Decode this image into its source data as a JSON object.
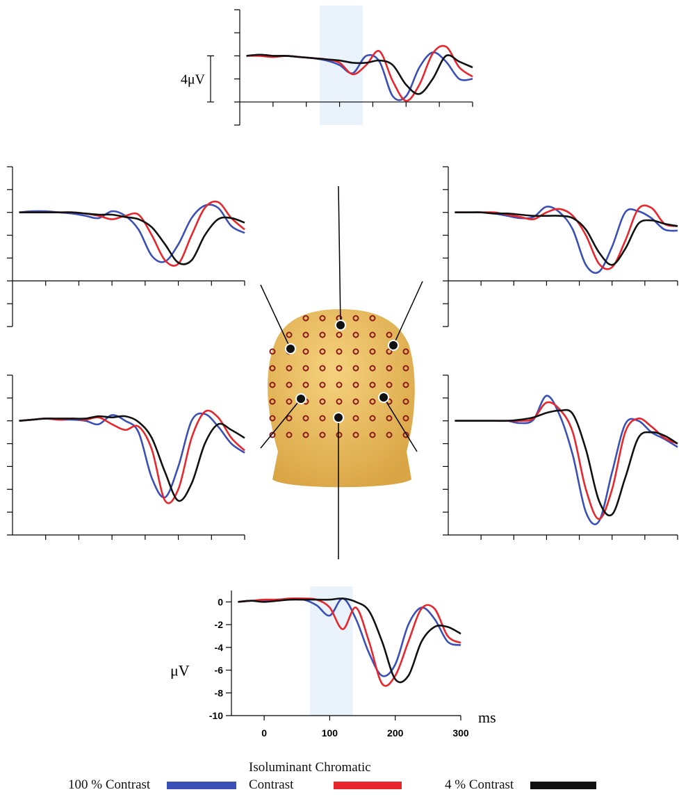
{
  "chart_data": [
    {
      "type": "line",
      "x": [
        -40,
        -20,
        0,
        20,
        40,
        60,
        80,
        100,
        120,
        140,
        160,
        180,
        200,
        220,
        240,
        260,
        280,
        300
      ],
      "xlim": [
        -50,
        300
      ],
      "ylim": [
        -6,
        4
      ],
      "xticks": [
        0,
        50,
        100,
        150,
        200,
        250,
        300
      ],
      "yticks": [
        4,
        2,
        0,
        -2,
        -4,
        -6
      ],
      "tick_labels": false,
      "x_axis_at": -4,
      "highlight": [
        70,
        135
      ],
      "highlight_color": "#eaf3fb",
      "scale_bar": {
        "value": 4,
        "label": "4μV"
      },
      "series": [
        {
          "color": "#3a4fb8",
          "values": [
            0,
            0.1,
            0,
            0,
            -0.1,
            -0.2,
            -0.4,
            -0.8,
            -1.5,
            0,
            -0.5,
            -3.5,
            -3.5,
            -1,
            0.3,
            -0.5,
            -2,
            -2
          ]
        },
        {
          "color": "#e8262b",
          "values": [
            0,
            0,
            -0.1,
            0,
            -0.1,
            -0.2,
            -0.3,
            -0.6,
            -1.6,
            -0.8,
            0.4,
            -2.2,
            -3.9,
            -2.5,
            0.2,
            0.8,
            -1,
            -1.8
          ]
        },
        {
          "color": "#111111",
          "values": [
            0,
            0.1,
            0,
            0,
            -0.1,
            -0.2,
            -0.3,
            -0.4,
            -0.6,
            -0.6,
            -0.4,
            -0.8,
            -2.5,
            -3.3,
            -2,
            0,
            -0.5,
            -1
          ]
        }
      ]
    },
    {
      "type": "line",
      "x": [
        -40,
        -20,
        0,
        20,
        40,
        60,
        80,
        100,
        120,
        140,
        160,
        180,
        200,
        220,
        240,
        260,
        280,
        300
      ],
      "xlim": [
        -50,
        300
      ],
      "ylim": [
        -10,
        4
      ],
      "xticks": [
        0,
        50,
        100,
        150,
        200,
        250,
        300
      ],
      "yticks": [
        4,
        2,
        0,
        -2,
        -4,
        -6,
        -8,
        -10
      ],
      "tick_labels": false,
      "x_axis_at": -6,
      "series": [
        {
          "color": "#3a4fb8",
          "values": [
            0,
            0.1,
            0.1,
            0,
            -0.1,
            -0.3,
            -0.5,
            0.1,
            -0.3,
            -1.5,
            -3.8,
            -4.3,
            -2.8,
            -0.5,
            0.6,
            0.4,
            -1.2,
            -1.8
          ]
        },
        {
          "color": "#e8262b",
          "values": [
            0,
            0,
            0,
            0,
            0,
            -0.1,
            -0.3,
            -0.6,
            -0.3,
            -0.2,
            -2,
            -4.2,
            -4.5,
            -2,
            0.4,
            0.9,
            -0.5,
            -1.5
          ]
        },
        {
          "color": "#111111",
          "values": [
            0,
            0,
            0,
            0,
            0,
            -0.1,
            -0.2,
            -0.2,
            -0.4,
            -0.6,
            -1.3,
            -2.8,
            -4.4,
            -4.2,
            -2,
            -0.6,
            -0.5,
            -0.9
          ]
        }
      ]
    },
    {
      "type": "line",
      "x": [
        -40,
        -20,
        0,
        20,
        40,
        60,
        80,
        100,
        120,
        140,
        160,
        180,
        200,
        220,
        240,
        260,
        280,
        300
      ],
      "xlim": [
        -50,
        300
      ],
      "ylim": [
        -10,
        4
      ],
      "xticks": [
        0,
        50,
        100,
        150,
        200,
        250,
        300
      ],
      "yticks": [
        4,
        2,
        0,
        -2,
        -4,
        -6,
        -8,
        -10
      ],
      "tick_labels": false,
      "x_axis_at": -6,
      "series": [
        {
          "color": "#3a4fb8",
          "values": [
            0,
            0,
            0,
            -0.1,
            -0.3,
            -0.5,
            -0.4,
            0.5,
            0,
            -1.5,
            -4.6,
            -5.2,
            -3,
            0,
            0.1,
            -0.5,
            -1.5,
            -1.6
          ]
        },
        {
          "color": "#e8262b",
          "values": [
            0,
            0,
            0,
            0,
            -0.2,
            -0.4,
            -0.6,
            0,
            0.3,
            -0.3,
            -2,
            -4.5,
            -4.8,
            -2.5,
            0.3,
            0.4,
            -1,
            -1.2
          ]
        },
        {
          "color": "#111111",
          "values": [
            0,
            0,
            0,
            -0.1,
            -0.1,
            -0.2,
            -0.3,
            -0.3,
            -0.3,
            -0.5,
            -1.5,
            -3.5,
            -4.6,
            -3.2,
            -1,
            -0.7,
            -1,
            -1.2
          ]
        }
      ]
    },
    {
      "type": "line",
      "x": [
        -40,
        -20,
        0,
        20,
        40,
        60,
        80,
        100,
        120,
        140,
        160,
        180,
        200,
        220,
        240,
        260,
        280,
        300
      ],
      "xlim": [
        -50,
        300
      ],
      "ylim": [
        -10,
        4
      ],
      "xticks": [
        0,
        50,
        100,
        150,
        200,
        250,
        300
      ],
      "yticks": [
        4,
        2,
        0,
        -2,
        -4,
        -6,
        -8,
        -10
      ],
      "tick_labels": false,
      "x_axis_at": -10,
      "series": [
        {
          "color": "#3a4fb8",
          "values": [
            0,
            0.1,
            0.2,
            0.1,
            0.1,
            0,
            -0.3,
            0.5,
            0,
            -1,
            -5,
            -6.7,
            -4,
            0,
            0.6,
            -0.5,
            -2,
            -2.8
          ]
        },
        {
          "color": "#e8262b",
          "values": [
            0,
            0.1,
            0.2,
            0.1,
            0.2,
            0.1,
            0.3,
            -0.3,
            -0.8,
            -0.5,
            -2.5,
            -7,
            -6,
            -1.5,
            0.8,
            0.3,
            -1.5,
            -2.6
          ]
        },
        {
          "color": "#111111",
          "values": [
            0,
            0.1,
            0.2,
            0.2,
            0.2,
            0.2,
            0.4,
            0.3,
            0.4,
            -0.1,
            -1.5,
            -4.5,
            -7,
            -5.5,
            -2,
            -0.3,
            -0.8,
            -1.5
          ]
        }
      ]
    },
    {
      "type": "line",
      "x": [
        -40,
        -20,
        0,
        20,
        40,
        60,
        80,
        100,
        120,
        140,
        160,
        180,
        200,
        220,
        240,
        260,
        280,
        300
      ],
      "xlim": [
        -50,
        300
      ],
      "ylim": [
        -10,
        4
      ],
      "xticks": [
        0,
        50,
        100,
        150,
        200,
        250,
        300
      ],
      "yticks": [
        4,
        2,
        0,
        -2,
        -4,
        -6,
        -8,
        -10
      ],
      "tick_labels": false,
      "x_axis_at": -10,
      "series": [
        {
          "color": "#3a4fb8",
          "values": [
            0,
            0,
            0,
            0,
            0,
            -0.2,
            0.1,
            2.2,
            0.5,
            -3,
            -8,
            -8.8,
            -4.5,
            -0.3,
            0,
            -1,
            -1.6,
            -2.3
          ]
        },
        {
          "color": "#e8262b",
          "values": [
            0,
            0,
            0,
            0,
            0,
            0,
            0.2,
            1.6,
            1,
            -1,
            -6,
            -8.6,
            -6,
            -1,
            0.2,
            -0.5,
            -1.5,
            -2
          ]
        },
        {
          "color": "#111111",
          "values": [
            0,
            0,
            0,
            0,
            0,
            0.1,
            0.3,
            0.7,
            0.9,
            0.6,
            -2.5,
            -7,
            -8.2,
            -5,
            -1.5,
            -1,
            -1.3,
            -2
          ]
        }
      ]
    },
    {
      "type": "line",
      "x": [
        -40,
        -20,
        0,
        20,
        40,
        60,
        80,
        100,
        120,
        140,
        160,
        180,
        200,
        220,
        240,
        260,
        280,
        300
      ],
      "xlim": [
        -50,
        300
      ],
      "ylim": [
        -10,
        1
      ],
      "xticks": [
        0,
        100,
        200,
        300
      ],
      "yticks": [
        0,
        -2,
        -4,
        -6,
        -8,
        -10
      ],
      "tick_labels": true,
      "x_axis_at": -10,
      "highlight": [
        70,
        135
      ],
      "highlight_color": "#eaf3fb",
      "x_label": "ms",
      "y_label": "μV",
      "series": [
        {
          "name": "100 % Contrast",
          "color": "#3a4fb8",
          "values": [
            0,
            0.1,
            0.1,
            0.2,
            0.2,
            0.2,
            -0.3,
            -1.2,
            0.3,
            -1.5,
            -4.5,
            -6.5,
            -5.5,
            -2,
            -0.5,
            -1.5,
            -3.5,
            -3.8
          ]
        },
        {
          "name": "Isoluminant Chromatic Contrast",
          "color": "#e8262b",
          "values": [
            0,
            0.1,
            0.2,
            0.2,
            0.3,
            0.3,
            0.2,
            -0.5,
            -2.4,
            -0.5,
            -3.5,
            -7.2,
            -6.5,
            -3.5,
            -0.6,
            -0.6,
            -3,
            -3.6
          ]
        },
        {
          "name": "4 % Contrast",
          "color": "#111111",
          "values": [
            0,
            0.1,
            0,
            0.1,
            0.2,
            0.2,
            0.2,
            0.2,
            0.3,
            0,
            -0.8,
            -3.5,
            -6.8,
            -6.5,
            -3.5,
            -2.2,
            -2.2,
            -2.8
          ]
        }
      ]
    }
  ]
}
